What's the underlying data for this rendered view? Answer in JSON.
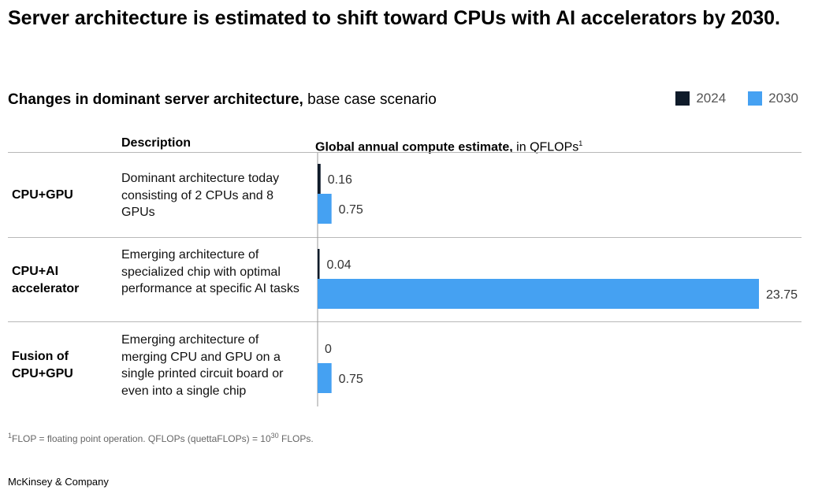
{
  "title": "Server architecture is estimated to shift toward CPUs with AI accelerators by 2030.",
  "subtitle_bold": "Changes in dominant server architecture,",
  "subtitle_rest": " base case scenario",
  "columns": {
    "description": "Description",
    "estimate_bold": "Global annual compute estimate,",
    "estimate_rest": " in QFLOPs",
    "estimate_sup": "1"
  },
  "footnote": {
    "sup_mark": "1",
    "text_a": "FLOP = floating point operation. QFLOPs (quettaFLOPs) = 10",
    "exponent": "30",
    "text_b": " FLOPs."
  },
  "source": "McKinsey & Company",
  "colors": {
    "y2024": "#0f1b2a",
    "y2030": "#45a1f2"
  },
  "chart_data": {
    "type": "bar",
    "orientation": "horizontal",
    "title": "Changes in dominant server architecture, base case scenario",
    "xlabel": "Global annual compute estimate, in QFLOPs",
    "categories": [
      "CPU+GPU",
      "CPU+AI accelerator",
      "Fusion of CPU+GPU"
    ],
    "descriptions": [
      "Dominant architecture today consisting of 2 CPUs and 8 GPUs",
      "Emerging architecture of specialized chip with optimal performance at specific AI tasks",
      "Emerging architecture of merging CPU and GPU on a single printed circuit board or even into a single chip"
    ],
    "series": [
      {
        "name": "2024",
        "values": [
          0.16,
          0.04,
          0
        ],
        "labels": [
          "0.16",
          "0.04",
          "0"
        ]
      },
      {
        "name": "2030",
        "values": [
          0.75,
          23.75,
          0.75
        ],
        "labels": [
          "0.75",
          "23.75",
          "0.75"
        ]
      }
    ],
    "xlim": [
      0,
      23.75
    ],
    "legend": "top-right"
  }
}
